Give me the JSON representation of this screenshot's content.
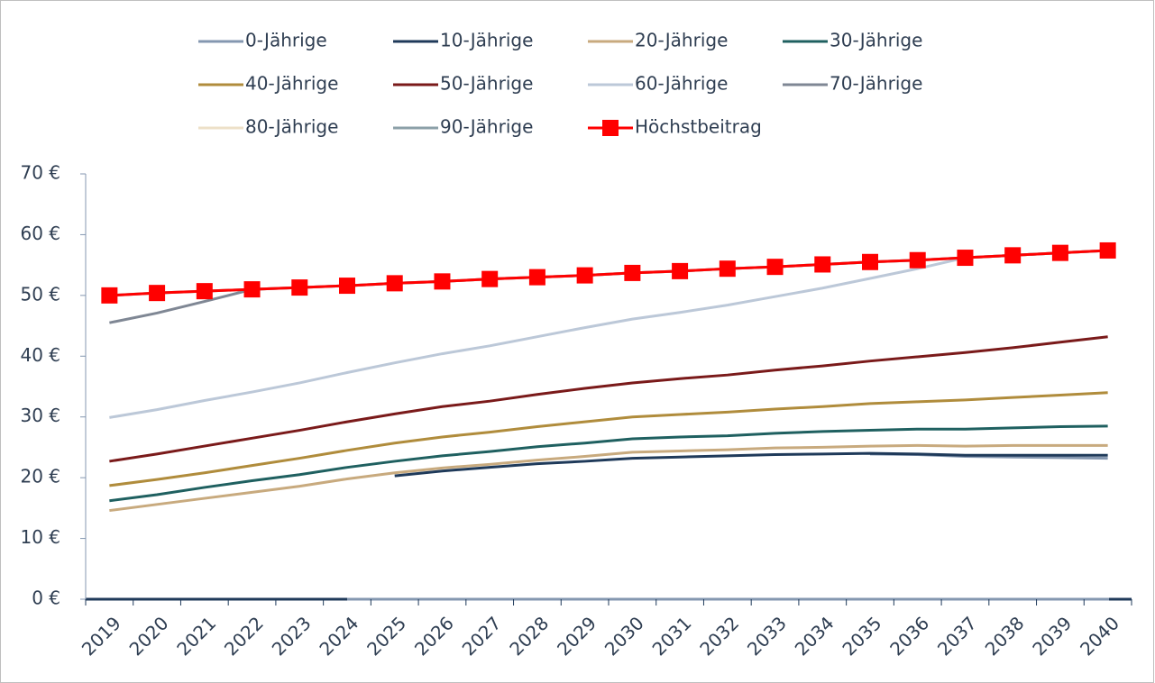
{
  "chart_data": {
    "type": "line",
    "categories": [
      "2019",
      "2020",
      "2021",
      "2022",
      "2023",
      "2024",
      "2025",
      "2026",
      "2027",
      "2028",
      "2029",
      "2030",
      "2031",
      "2032",
      "2033",
      "2034",
      "2035",
      "2036",
      "2037",
      "2038",
      "2039",
      "2040"
    ],
    "ylim": [
      0,
      70
    ],
    "yticks": [
      {
        "value": 0,
        "label": "0 €"
      },
      {
        "value": 10,
        "label": "10 €"
      },
      {
        "value": 20,
        "label": "20 €"
      },
      {
        "value": 30,
        "label": "30 €"
      },
      {
        "value": 40,
        "label": "40 €"
      },
      {
        "value": 50,
        "label": "50 €"
      },
      {
        "value": 60,
        "label": "60 €"
      },
      {
        "value": 70,
        "label": "70 €"
      }
    ],
    "legend": "top",
    "series": [
      {
        "name": "0-Jährige",
        "color": "#8497b0",
        "values": [
          null,
          null,
          null,
          null,
          null,
          null,
          null,
          null,
          null,
          null,
          null,
          null,
          null,
          null,
          null,
          null,
          23.9,
          23.8,
          23.5,
          23.4,
          23.3,
          23.2
        ]
      },
      {
        "name": "10-Jährige",
        "color": "#1f3a5a",
        "values": [
          null,
          null,
          null,
          null,
          null,
          null,
          20.3,
          21.1,
          21.7,
          22.3,
          22.7,
          23.2,
          23.4,
          23.6,
          23.8,
          23.9,
          24.0,
          23.9,
          23.7,
          23.7,
          23.7,
          23.7
        ]
      },
      {
        "name": "20-Jährige",
        "color": "#c8aa7e",
        "values": [
          14.6,
          15.6,
          16.6,
          17.6,
          18.6,
          19.8,
          20.8,
          21.6,
          22.2,
          22.9,
          23.5,
          24.2,
          24.4,
          24.6,
          24.9,
          25.0,
          25.2,
          25.3,
          25.2,
          25.3,
          25.3,
          25.3
        ]
      },
      {
        "name": "30-Jährige",
        "color": "#1f6060",
        "values": [
          16.2,
          17.2,
          18.4,
          19.5,
          20.5,
          21.7,
          22.7,
          23.6,
          24.3,
          25.1,
          25.7,
          26.4,
          26.7,
          26.9,
          27.3,
          27.6,
          27.8,
          28.0,
          28.0,
          28.2,
          28.4,
          28.5
        ]
      },
      {
        "name": "40-Jährige",
        "color": "#b08c3c",
        "values": [
          18.7,
          19.7,
          20.8,
          22.0,
          23.2,
          24.5,
          25.7,
          26.7,
          27.5,
          28.4,
          29.2,
          30.0,
          30.4,
          30.8,
          31.3,
          31.7,
          32.2,
          32.5,
          32.8,
          33.2,
          33.6,
          34.0
        ]
      },
      {
        "name": "50-Jährige",
        "color": "#7a1a1a",
        "values": [
          22.7,
          23.9,
          25.2,
          26.5,
          27.8,
          29.2,
          30.5,
          31.7,
          32.6,
          33.7,
          34.7,
          35.6,
          36.3,
          36.9,
          37.7,
          38.4,
          39.2,
          39.9,
          40.6,
          41.4,
          42.3,
          43.2
        ]
      },
      {
        "name": "60-Jährige",
        "color": "#bcc8d8",
        "values": [
          29.9,
          31.2,
          32.7,
          34.1,
          35.6,
          37.3,
          38.9,
          40.4,
          41.7,
          43.2,
          44.7,
          46.1,
          47.2,
          48.4,
          49.8,
          51.2,
          52.8,
          54.4,
          56.2,
          56.6,
          57.0,
          57.4
        ]
      },
      {
        "name": "70-Jährige",
        "color": "#7f8794",
        "values": [
          45.5,
          47.1,
          49.0,
          51.0,
          51.3,
          51.6,
          52.0,
          52.3,
          52.7,
          53.0,
          53.3,
          53.7,
          54.0,
          54.4,
          54.7,
          55.1,
          55.5,
          55.8,
          56.2,
          56.6,
          57.0,
          57.4
        ]
      },
      {
        "name": "80-Jährige",
        "color": "#ede0c8",
        "values": [
          50.0,
          50.4,
          50.7,
          51.0,
          51.3,
          51.6,
          52.0,
          52.3,
          52.7,
          53.0,
          53.3,
          53.7,
          54.0,
          54.4,
          54.7,
          55.1,
          55.5,
          55.8,
          56.2,
          56.6,
          57.0,
          57.4
        ]
      },
      {
        "name": "90-Jährige",
        "color": "#8ca0a8",
        "values": [
          50.0,
          50.4,
          50.7,
          51.0,
          51.3,
          51.6,
          52.0,
          52.3,
          52.7,
          53.0,
          53.3,
          53.7,
          54.0,
          54.4,
          54.7,
          55.1,
          55.5,
          55.8,
          56.2,
          56.6,
          57.0,
          57.4
        ]
      },
      {
        "name": "Höchstbeitrag",
        "color": "#ff0000",
        "marker": "square",
        "values": [
          50.0,
          50.4,
          50.7,
          51.0,
          51.3,
          51.6,
          52.0,
          52.3,
          52.7,
          53.0,
          53.3,
          53.7,
          54.0,
          54.4,
          54.7,
          55.1,
          55.5,
          55.8,
          56.2,
          56.6,
          57.0,
          57.4
        ]
      }
    ]
  }
}
